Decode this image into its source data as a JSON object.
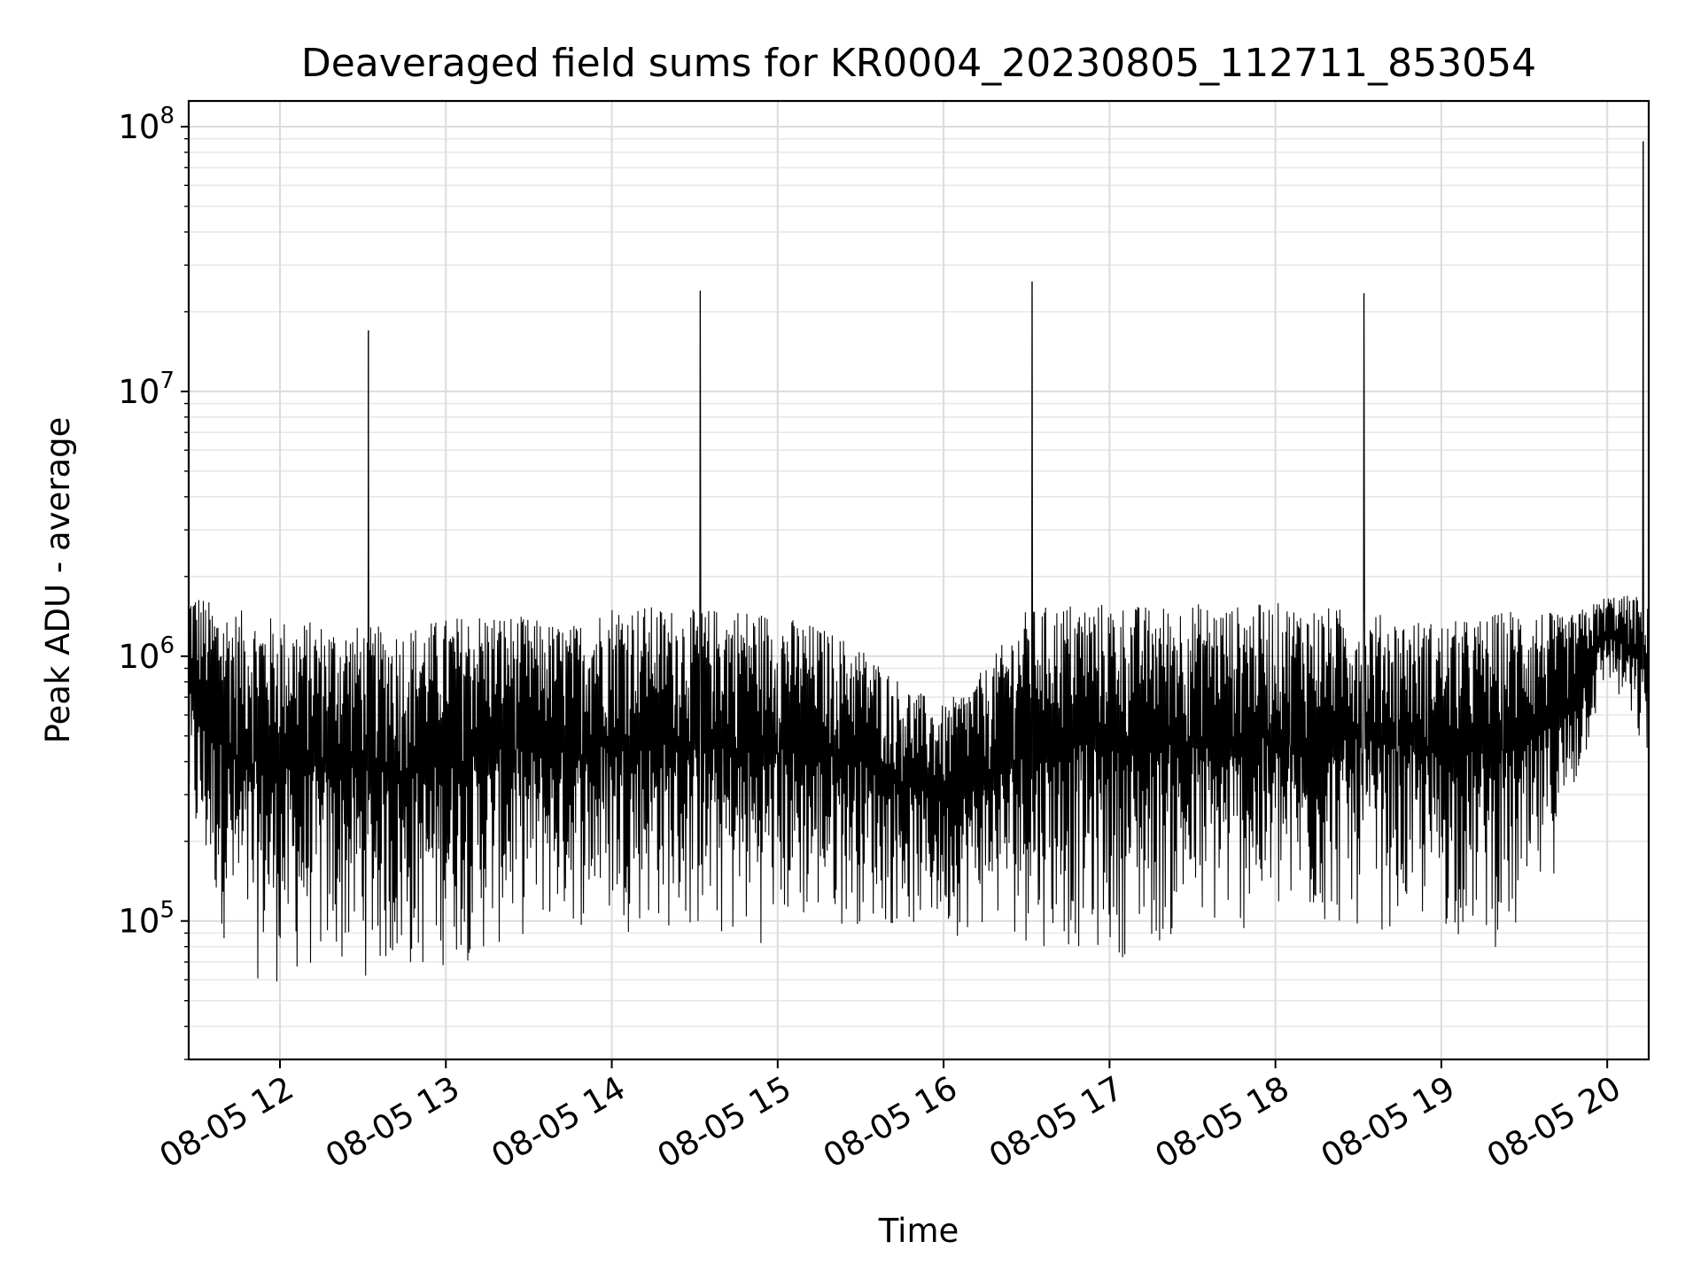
{
  "chart_data": {
    "type": "line",
    "title": "Deaveraged field sums for KR0004_20230805_112711_853054",
    "xlabel": "Time",
    "ylabel": "Peak ADU - average",
    "yscale": "log",
    "ylim": [
      30000,
      125000000
    ],
    "xlim": [
      "2023-08-05 11:27",
      "2023-08-05 20:15"
    ],
    "grid": "on (major and minor)",
    "line_color": "#000000",
    "x_ticks": [
      {
        "t": "2023-08-05 12:00",
        "label": "08-05 12"
      },
      {
        "t": "2023-08-05 13:00",
        "label": "08-05 13"
      },
      {
        "t": "2023-08-05 14:00",
        "label": "08-05 14"
      },
      {
        "t": "2023-08-05 15:00",
        "label": "08-05 15"
      },
      {
        "t": "2023-08-05 16:00",
        "label": "08-05 16"
      },
      {
        "t": "2023-08-05 17:00",
        "label": "08-05 17"
      },
      {
        "t": "2023-08-05 18:00",
        "label": "08-05 18"
      },
      {
        "t": "2023-08-05 19:00",
        "label": "08-05 19"
      },
      {
        "t": "2023-08-05 20:00",
        "label": "08-05 20"
      }
    ],
    "y_ticks": [
      {
        "value": 100000,
        "base": "10",
        "exp": "5"
      },
      {
        "value": 1000000,
        "base": "10",
        "exp": "6"
      },
      {
        "value": 10000000,
        "base": "10",
        "exp": "7"
      },
      {
        "value": 100000000,
        "base": "10",
        "exp": "8"
      }
    ],
    "spikes": [
      {
        "t": "2023-08-05 12:32",
        "value": 17000000
      },
      {
        "t": "2023-08-05 14:32",
        "value": 24000000
      },
      {
        "t": "2023-08-05 16:32",
        "value": 26000000
      },
      {
        "t": "2023-08-05 18:32",
        "value": 23500000
      },
      {
        "t": "2023-08-05 20:13",
        "value": 88000000
      }
    ],
    "envelope": [
      {
        "t": "2023-08-05 11:27",
        "low": 180000,
        "high": 1900000
      },
      {
        "t": "2023-08-05 11:35",
        "low": 110000,
        "high": 1600000
      },
      {
        "t": "2023-08-05 11:45",
        "low": 60000,
        "high": 1500000
      },
      {
        "t": "2023-08-05 12:00",
        "low": 55000,
        "high": 1400000
      },
      {
        "t": "2023-08-05 12:15",
        "low": 60000,
        "high": 1350000
      },
      {
        "t": "2023-08-05 12:30",
        "low": 60000,
        "high": 1300000
      },
      {
        "t": "2023-08-05 12:45",
        "low": 55000,
        "high": 1300000
      },
      {
        "t": "2023-08-05 13:00",
        "low": 65000,
        "high": 1400000
      },
      {
        "t": "2023-08-05 13:15",
        "low": 70000,
        "high": 1500000
      },
      {
        "t": "2023-08-05 13:30",
        "low": 85000,
        "high": 1400000
      },
      {
        "t": "2023-08-05 13:45",
        "low": 90000,
        "high": 1300000
      },
      {
        "t": "2023-08-05 14:00",
        "low": 90000,
        "high": 1600000
      },
      {
        "t": "2023-08-05 14:15",
        "low": 90000,
        "high": 1550000
      },
      {
        "t": "2023-08-05 14:30",
        "low": 80000,
        "high": 1500000
      },
      {
        "t": "2023-08-05 14:45",
        "low": 75000,
        "high": 1550000
      },
      {
        "t": "2023-08-05 15:00",
        "low": 85000,
        "high": 1450000
      },
      {
        "t": "2023-08-05 15:15",
        "low": 90000,
        "high": 1300000
      },
      {
        "t": "2023-08-05 15:30",
        "low": 95000,
        "high": 1100000
      },
      {
        "t": "2023-08-05 15:45",
        "low": 90000,
        "high": 800000
      },
      {
        "t": "2023-08-05 16:00",
        "low": 85000,
        "high": 650000
      },
      {
        "t": "2023-08-05 16:15",
        "low": 90000,
        "high": 900000
      },
      {
        "t": "2023-08-05 16:30",
        "low": 80000,
        "high": 1500000
      },
      {
        "t": "2023-08-05 16:45",
        "low": 75000,
        "high": 1600000
      },
      {
        "t": "2023-08-05 17:00",
        "low": 70000,
        "high": 1600000
      },
      {
        "t": "2023-08-05 17:15",
        "low": 75000,
        "high": 1550000
      },
      {
        "t": "2023-08-05 17:30",
        "low": 80000,
        "high": 1600000
      },
      {
        "t": "2023-08-05 17:45",
        "low": 85000,
        "high": 1550000
      },
      {
        "t": "2023-08-05 18:00",
        "low": 85000,
        "high": 1600000
      },
      {
        "t": "2023-08-05 18:15",
        "low": 85000,
        "high": 1550000
      },
      {
        "t": "2023-08-05 18:30",
        "low": 90000,
        "high": 1500000
      },
      {
        "t": "2023-08-05 18:45",
        "low": 90000,
        "high": 1400000
      },
      {
        "t": "2023-08-05 19:00",
        "low": 85000,
        "high": 1350000
      },
      {
        "t": "2023-08-05 19:15",
        "low": 80000,
        "high": 1400000
      },
      {
        "t": "2023-08-05 19:30",
        "low": 70000,
        "high": 1600000
      },
      {
        "t": "2023-08-05 19:45",
        "low": 200000,
        "high": 1400000
      },
      {
        "t": "2023-08-05 20:00",
        "low": 800000,
        "high": 1700000
      },
      {
        "t": "2023-08-05 20:15",
        "low": 350000,
        "high": 1700000
      }
    ]
  }
}
